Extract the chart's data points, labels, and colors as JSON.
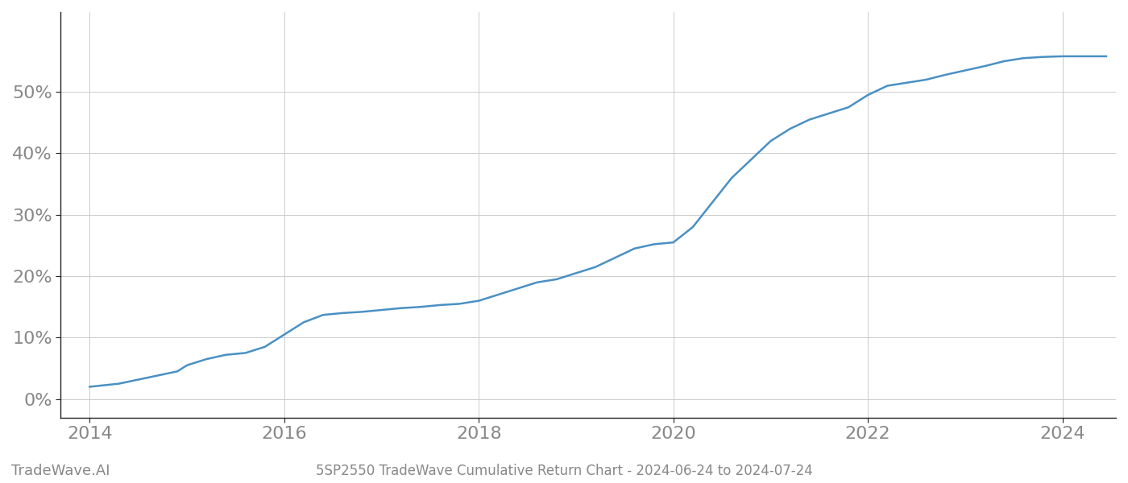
{
  "x_values": [
    2014.0,
    2014.3,
    2014.6,
    2014.9,
    2015.0,
    2015.2,
    2015.4,
    2015.6,
    2015.8,
    2016.0,
    2016.2,
    2016.4,
    2016.6,
    2016.8,
    2017.0,
    2017.2,
    2017.4,
    2017.6,
    2017.8,
    2018.0,
    2018.2,
    2018.4,
    2018.6,
    2018.8,
    2019.0,
    2019.2,
    2019.4,
    2019.6,
    2019.8,
    2020.0,
    2020.2,
    2020.4,
    2020.6,
    2020.8,
    2021.0,
    2021.2,
    2021.4,
    2021.6,
    2021.8,
    2022.0,
    2022.2,
    2022.4,
    2022.6,
    2022.8,
    2023.0,
    2023.2,
    2023.4,
    2023.6,
    2023.8,
    2024.0,
    2024.2,
    2024.45
  ],
  "y_values": [
    2.0,
    2.5,
    3.5,
    4.5,
    5.5,
    6.5,
    7.2,
    7.5,
    8.5,
    10.5,
    12.5,
    13.7,
    14.0,
    14.2,
    14.5,
    14.8,
    15.0,
    15.3,
    15.5,
    16.0,
    17.0,
    18.0,
    19.0,
    19.5,
    20.5,
    21.5,
    23.0,
    24.5,
    25.2,
    25.5,
    28.0,
    32.0,
    36.0,
    39.0,
    42.0,
    44.0,
    45.5,
    46.5,
    47.5,
    49.5,
    51.0,
    51.5,
    52.0,
    52.8,
    53.5,
    54.2,
    55.0,
    55.5,
    55.7,
    55.8,
    55.8,
    55.8
  ],
  "line_color": "#4a90c4",
  "line_width": 1.8,
  "background_color": "#ffffff",
  "grid_color": "#cccccc",
  "title": "5SP2550 TradeWave Cumulative Return Chart - 2024-06-24 to 2024-07-24",
  "xlabel": "",
  "ylabel": "",
  "xlim": [
    2013.7,
    2024.55
  ],
  "ylim": [
    -3,
    63
  ],
  "xtick_labels": [
    "2014",
    "2016",
    "2018",
    "2020",
    "2022",
    "2024"
  ],
  "xtick_values": [
    2014,
    2016,
    2018,
    2020,
    2022,
    2024
  ],
  "ytick_labels": [
    "0%",
    "10%",
    "20%",
    "30%",
    "40%",
    "50%"
  ],
  "ytick_values": [
    0,
    10,
    20,
    30,
    40,
    50
  ],
  "watermark_text": "TradeWave.AI",
  "title_fontsize": 12,
  "tick_fontsize": 16,
  "watermark_fontsize": 13
}
